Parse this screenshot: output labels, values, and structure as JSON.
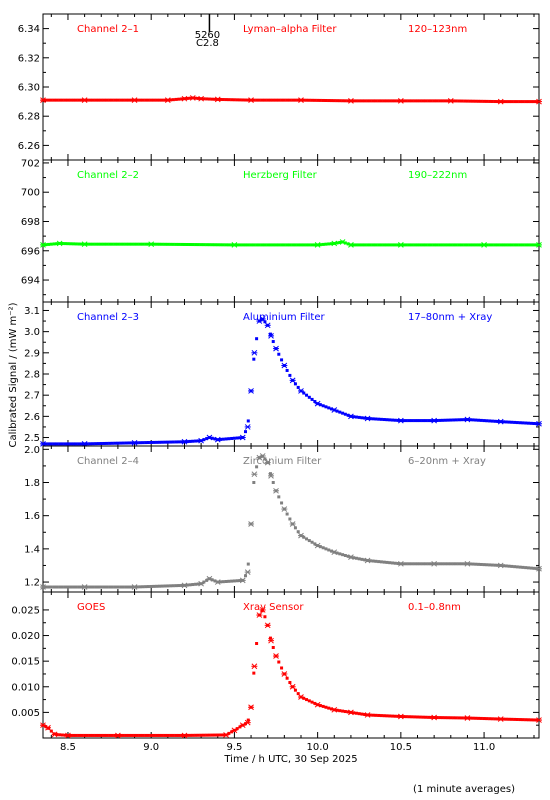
{
  "chart_data": {
    "type": "scatter",
    "xlabel": "Time / h UTC, 30 Sep 2025",
    "ylabel": "Calibrated Signal  / (mW m⁻²)",
    "footnote": "(1 minute averages)",
    "xlim": [
      8.35,
      11.33
    ],
    "xticks": [
      8.5,
      9.0,
      9.5,
      10.0,
      10.5,
      11.0
    ],
    "xtick_labels": [
      "8.5",
      "9.0",
      "9.5",
      "10.0",
      "10.5",
      "11.0"
    ],
    "marker_annotation": {
      "x": 9.35,
      "labels": [
        "5260",
        "C2.8"
      ]
    },
    "panels": [
      {
        "channel": "Channel 2–1",
        "filter": "Lyman–alpha Filter",
        "band": "120–123nm",
        "color": "#ff0000",
        "ylim": [
          6.25,
          6.35
        ],
        "yticks": [
          6.26,
          6.28,
          6.3,
          6.32,
          6.34
        ],
        "ytick_labels": [
          "6.26",
          "6.28",
          "6.30",
          "6.32",
          "6.34"
        ],
        "series": {
          "x": [
            8.35,
            8.6,
            8.9,
            9.1,
            9.2,
            9.25,
            9.3,
            9.4,
            9.6,
            9.9,
            10.2,
            10.5,
            10.8,
            11.1,
            11.33
          ],
          "y": [
            6.291,
            6.291,
            6.291,
            6.291,
            6.292,
            6.2925,
            6.292,
            6.2915,
            6.291,
            6.291,
            6.2905,
            6.2905,
            6.2905,
            6.29,
            6.29
          ]
        }
      },
      {
        "channel": "Channel 2–2",
        "filter": "Herzberg Filter",
        "band": "190–222nm",
        "color": "#00ff00",
        "ylim": [
          692.5,
          702.2
        ],
        "yticks": [
          694,
          696,
          698,
          700,
          702
        ],
        "ytick_labels": [
          "694",
          "696",
          "698",
          "700",
          "702"
        ],
        "series": {
          "x": [
            8.35,
            8.45,
            8.6,
            9.0,
            9.5,
            10.0,
            10.1,
            10.15,
            10.2,
            10.5,
            11.0,
            11.33
          ],
          "y": [
            696.4,
            696.5,
            696.45,
            696.45,
            696.4,
            696.4,
            696.5,
            696.6,
            696.4,
            696.4,
            696.4,
            696.4
          ]
        }
      },
      {
        "channel": "Channel 2–3",
        "filter": "Aluminium Filter",
        "band": "17–80nm + Xray",
        "color": "#0000ff",
        "ylim": [
          2.46,
          3.14
        ],
        "yticks": [
          2.5,
          2.6,
          2.7,
          2.8,
          2.9,
          3.0,
          3.1
        ],
        "ytick_labels": [
          "2.5",
          "2.6",
          "2.7",
          "2.8",
          "2.9",
          "3.0",
          "3.1"
        ],
        "series": {
          "x": [
            8.35,
            8.6,
            8.9,
            9.2,
            9.3,
            9.35,
            9.4,
            9.55,
            9.58,
            9.6,
            9.62,
            9.65,
            9.67,
            9.7,
            9.72,
            9.75,
            9.8,
            9.85,
            9.9,
            10.0,
            10.1,
            10.2,
            10.3,
            10.5,
            10.7,
            10.9,
            11.1,
            11.33
          ],
          "y": [
            2.47,
            2.47,
            2.475,
            2.48,
            2.485,
            2.5,
            2.49,
            2.5,
            2.55,
            2.72,
            2.9,
            3.05,
            3.06,
            3.03,
            2.98,
            2.92,
            2.84,
            2.77,
            2.72,
            2.66,
            2.63,
            2.6,
            2.59,
            2.58,
            2.58,
            2.585,
            2.575,
            2.565
          ]
        }
      },
      {
        "channel": "Channel 2–4",
        "filter": "Zirconium Filter",
        "band": "6–20nm + Xray",
        "color": "#808080",
        "ylim": [
          1.14,
          2.02
        ],
        "yticks": [
          1.2,
          1.4,
          1.6,
          1.8,
          2.0
        ],
        "ytick_labels": [
          "1.2",
          "1.4",
          "1.6",
          "1.8",
          "2.0"
        ],
        "series": {
          "x": [
            8.35,
            8.6,
            8.9,
            9.2,
            9.3,
            9.35,
            9.4,
            9.55,
            9.58,
            9.6,
            9.62,
            9.65,
            9.67,
            9.7,
            9.72,
            9.75,
            9.8,
            9.85,
            9.9,
            10.0,
            10.1,
            10.2,
            10.3,
            10.5,
            10.7,
            10.9,
            11.1,
            11.33
          ],
          "y": [
            1.17,
            1.17,
            1.17,
            1.18,
            1.19,
            1.22,
            1.2,
            1.21,
            1.26,
            1.55,
            1.85,
            1.95,
            1.96,
            1.92,
            1.84,
            1.75,
            1.64,
            1.55,
            1.48,
            1.42,
            1.38,
            1.35,
            1.33,
            1.31,
            1.31,
            1.31,
            1.3,
            1.28
          ]
        }
      },
      {
        "channel": "GOES",
        "filter": "Xray Sensor",
        "band": "0.1–0.8nm",
        "color": "#ff0000",
        "ylim": [
          0.0,
          0.0285
        ],
        "yticks": [
          0.005,
          0.01,
          0.015,
          0.02,
          0.025
        ],
        "ytick_labels": [
          "0.005",
          "0.010",
          "0.015",
          "0.020",
          "0.025"
        ],
        "series": {
          "x": [
            8.35,
            8.38,
            8.42,
            8.5,
            8.8,
            9.2,
            9.45,
            9.5,
            9.55,
            9.58,
            9.6,
            9.62,
            9.65,
            9.67,
            9.7,
            9.72,
            9.75,
            9.8,
            9.85,
            9.9,
            10.0,
            10.1,
            10.2,
            10.3,
            10.5,
            10.7,
            10.9,
            11.1,
            11.33
          ],
          "y": [
            0.0025,
            0.002,
            0.0007,
            0.0005,
            0.0005,
            0.0005,
            0.0006,
            0.0015,
            0.0025,
            0.003,
            0.006,
            0.014,
            0.024,
            0.025,
            0.022,
            0.019,
            0.016,
            0.0125,
            0.01,
            0.008,
            0.0065,
            0.0055,
            0.005,
            0.0045,
            0.0042,
            0.004,
            0.0039,
            0.0037,
            0.0035
          ]
        }
      }
    ]
  }
}
